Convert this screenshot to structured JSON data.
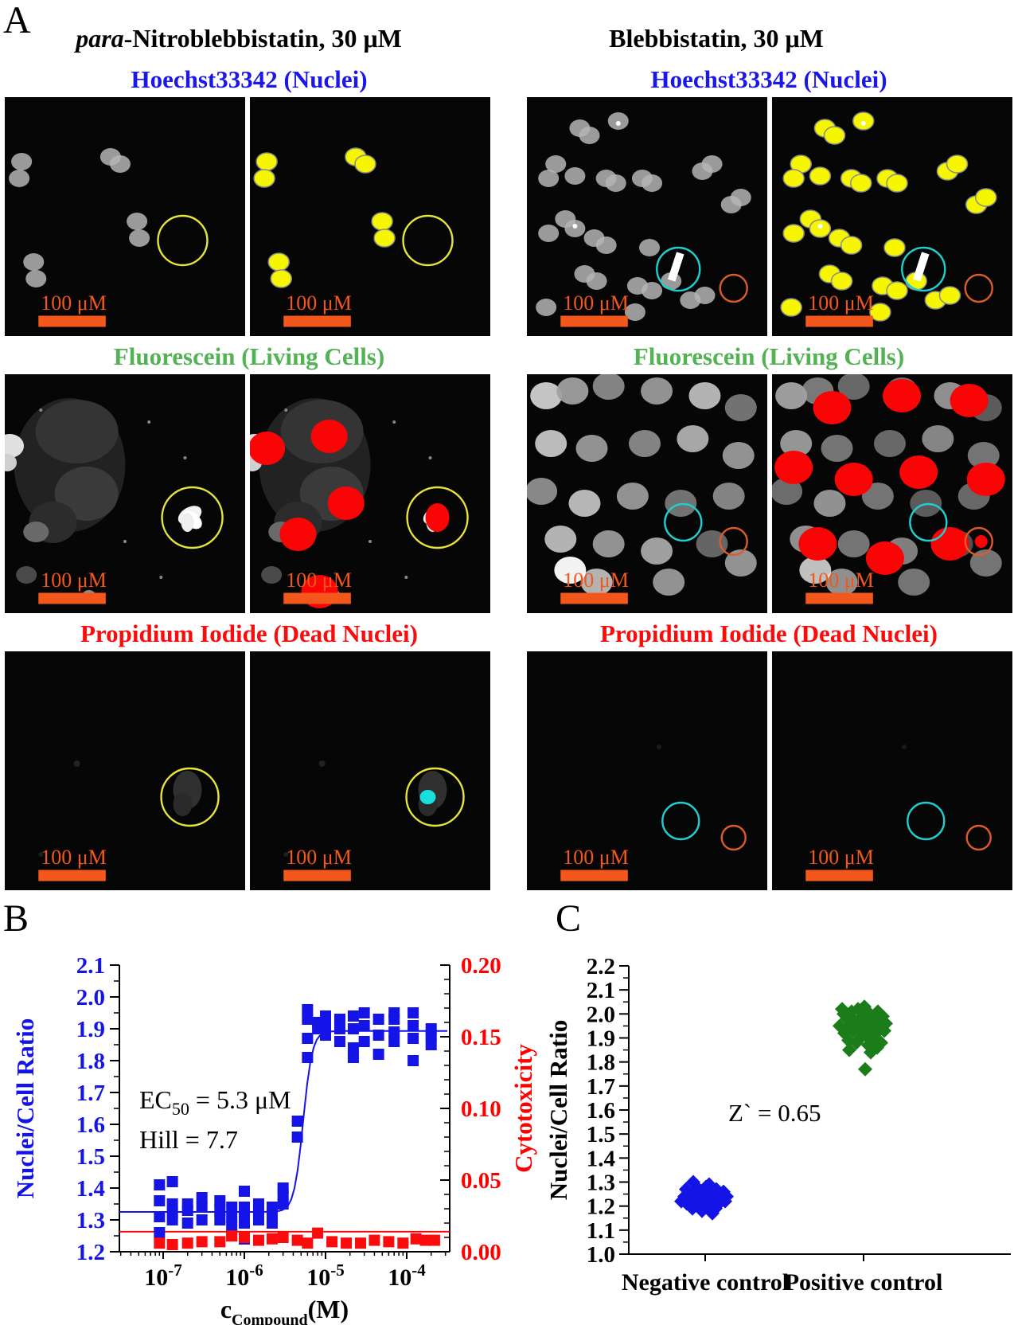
{
  "panel_a": {
    "label": "A",
    "columns": [
      {
        "title_italic": "para",
        "title_rest": "-Nitroblebbistatin, 30 μM"
      },
      {
        "title_italic": "",
        "title_rest": "Blebbistatin, 30 μM"
      }
    ],
    "stain_rows": [
      {
        "header": "Hoechst33342 (Nuclei)",
        "color": "#1b17e8"
      },
      {
        "header": "Fluorescein (Living Cells)",
        "color": "#53b253"
      },
      {
        "header": "Propidium Iodide (Dead Nuclei)",
        "color": "#fb0b0b"
      }
    ],
    "scale_bar_label": "100 μM",
    "scale_bar_color": "#f4571c",
    "annotation_circle_colors": {
      "yellow": "#e8e43c",
      "cyan": "#1ecfcf",
      "orange": "#dd5b28"
    },
    "highlight_colors": {
      "nuclei_mask": "#f6f600",
      "living_mask": "#fa0505",
      "dead_mask": "#19dede"
    }
  },
  "panel_b": {
    "label": "B"
  },
  "panel_c": {
    "label": "C"
  },
  "chart_data": [
    {
      "id": "dose-response",
      "type": "scatter",
      "x_scale": "log",
      "xlabel": {
        "main": "c",
        "sub": "Compound",
        "suffix": "(M)"
      },
      "x_ticks": [
        {
          "base": "10",
          "exp": "-7",
          "value": 1e-07
        },
        {
          "base": "10",
          "exp": "-6",
          "value": 1e-06
        },
        {
          "base": "10",
          "exp": "-5",
          "value": 1e-05
        },
        {
          "base": "10",
          "exp": "-4",
          "value": 0.0001
        }
      ],
      "left_axis": {
        "label": "Nuclei/Cell Ratio",
        "color": "#1414e8",
        "min": 1.2,
        "max": 2.1,
        "tick_labels": [
          "2.1",
          "2.0",
          "1.9",
          "1.8",
          "1.7",
          "1.6",
          "1.5",
          "1.4",
          "1.3",
          "1.2"
        ]
      },
      "right_axis": {
        "label": "Cytotoxicity",
        "color": "#fe0000",
        "min": 0.0,
        "max": 0.2,
        "tick_labels": [
          "0.20",
          "0.15",
          "0.10",
          "0.05",
          "0.00"
        ]
      },
      "annotations": [
        {
          "prefix": "EC",
          "sub": "50",
          "rest": " = 5.3 μM"
        },
        {
          "prefix": "",
          "sub": "",
          "rest": "Hill = 7.7"
        }
      ],
      "fit": {
        "base": 1.325,
        "top": 1.893,
        "ec50": 5.3e-06,
        "hill": 7.7
      },
      "baseline_right_value": 0.014,
      "series": [
        {
          "name": "Nuclei/Cell Ratio",
          "axis": "left",
          "marker": "square",
          "color": "#1414e8",
          "points": [
            [
              9e-08,
              1.41
            ],
            [
              9e-08,
              1.36
            ],
            [
              9e-08,
              1.31
            ],
            [
              9e-08,
              1.26
            ],
            [
              1.3e-07,
              1.42
            ],
            [
              1.3e-07,
              1.35
            ],
            [
              1.3e-07,
              1.32
            ],
            [
              1.3e-07,
              1.3
            ],
            [
              2e-07,
              1.35
            ],
            [
              2e-07,
              1.33
            ],
            [
              2e-07,
              1.29
            ],
            [
              3e-07,
              1.37
            ],
            [
              3e-07,
              1.34
            ],
            [
              3e-07,
              1.3
            ],
            [
              5e-07,
              1.36
            ],
            [
              5e-07,
              1.33
            ],
            [
              5e-07,
              1.3
            ],
            [
              7e-07,
              1.34
            ],
            [
              7e-07,
              1.31
            ],
            [
              7e-07,
              1.28
            ],
            [
              7e-07,
              1.25
            ],
            [
              1e-06,
              1.39
            ],
            [
              1e-06,
              1.34
            ],
            [
              1e-06,
              1.32
            ],
            [
              1e-06,
              1.29
            ],
            [
              1e-06,
              1.24
            ],
            [
              1.5e-06,
              1.35
            ],
            [
              1.5e-06,
              1.33
            ],
            [
              1.5e-06,
              1.3
            ],
            [
              2.2e-06,
              1.34
            ],
            [
              2.2e-06,
              1.32
            ],
            [
              2.2e-06,
              1.29
            ],
            [
              3e-06,
              1.4
            ],
            [
              3e-06,
              1.38
            ],
            [
              3e-06,
              1.35
            ],
            [
              4.5e-06,
              1.61
            ],
            [
              4.5e-06,
              1.56
            ],
            [
              6e-06,
              1.96
            ],
            [
              6e-06,
              1.93
            ],
            [
              6e-06,
              1.87
            ],
            [
              6e-06,
              1.81
            ],
            [
              8e-06,
              1.92
            ],
            [
              8e-06,
              1.9
            ],
            [
              1e-05,
              1.94
            ],
            [
              1e-05,
              1.91
            ],
            [
              1e-05,
              1.88
            ],
            [
              1.5e-05,
              1.93
            ],
            [
              1.5e-05,
              1.9
            ],
            [
              1.5e-05,
              1.86
            ],
            [
              2.2e-05,
              1.94
            ],
            [
              2.2e-05,
              1.9
            ],
            [
              2.2e-05,
              1.84
            ],
            [
              2.2e-05,
              1.81
            ],
            [
              3e-05,
              1.95
            ],
            [
              3e-05,
              1.91
            ],
            [
              3e-05,
              1.86
            ],
            [
              4.5e-05,
              1.93
            ],
            [
              4.5e-05,
              1.88
            ],
            [
              4.5e-05,
              1.82
            ],
            [
              7e-05,
              1.95
            ],
            [
              7e-05,
              1.93
            ],
            [
              7e-05,
              1.89
            ],
            [
              7e-05,
              1.86
            ],
            [
              0.00012,
              1.95
            ],
            [
              0.00012,
              1.91
            ],
            [
              0.00012,
              1.87
            ],
            [
              0.00012,
              1.8
            ],
            [
              0.0002,
              1.9
            ],
            [
              0.0002,
              1.88
            ],
            [
              0.0002,
              1.85
            ]
          ]
        },
        {
          "name": "Cytotoxicity",
          "axis": "right",
          "marker": "square",
          "color": "#fb0b0b",
          "points": [
            [
              9e-08,
              0.006
            ],
            [
              1.3e-07,
              0.005
            ],
            [
              2e-07,
              0.006
            ],
            [
              3e-07,
              0.007
            ],
            [
              5e-07,
              0.007
            ],
            [
              7e-07,
              0.011
            ],
            [
              1e-06,
              0.01
            ],
            [
              1.5e-06,
              0.008
            ],
            [
              2.2e-06,
              0.009
            ],
            [
              3e-06,
              0.01
            ],
            [
              4.5e-06,
              0.008
            ],
            [
              6e-06,
              0.006
            ],
            [
              8e-06,
              0.013
            ],
            [
              1.2e-05,
              0.007
            ],
            [
              1.8e-05,
              0.006
            ],
            [
              2.7e-05,
              0.006
            ],
            [
              4e-05,
              0.008
            ],
            [
              6e-05,
              0.007
            ],
            [
              9e-05,
              0.006
            ],
            [
              0.00013,
              0.009
            ],
            [
              0.00017,
              0.008
            ],
            [
              0.00022,
              0.008
            ]
          ]
        }
      ]
    },
    {
      "id": "controls",
      "type": "scatter",
      "categories": [
        "Negative control",
        "Positive control"
      ],
      "y_axis": {
        "label": "Nuclei/Cell Ratio",
        "color": "#000000",
        "min": 1.0,
        "max": 2.2,
        "tick_labels": [
          "2.2",
          "2.1",
          "2.0",
          "1.9",
          "1.8",
          "1.7",
          "1.6",
          "1.5",
          "1.4",
          "1.3",
          "1.2",
          "1.1",
          "1.0"
        ]
      },
      "annotation": "Z` = 0.65",
      "series": [
        {
          "name": "Negative control",
          "color": "#1414e6",
          "marker": "diamond",
          "points": [
            [
              -30,
              1.22
            ],
            [
              -26,
              1.24
            ],
            [
              -23,
              1.21
            ],
            [
              -20,
              1.25
            ],
            [
              -18,
              1.22
            ],
            [
              -16,
              1.19
            ],
            [
              -14,
              1.26
            ],
            [
              -12,
              1.23
            ],
            [
              -10,
              1.2
            ],
            [
              -8,
              1.27
            ],
            [
              -7,
              1.24
            ],
            [
              -5,
              1.21
            ],
            [
              -4,
              1.18
            ],
            [
              -2,
              1.25
            ],
            [
              0,
              1.22
            ],
            [
              1,
              1.28
            ],
            [
              3,
              1.24
            ],
            [
              4,
              1.2
            ],
            [
              6,
              1.26
            ],
            [
              7,
              1.23
            ],
            [
              9,
              1.17
            ],
            [
              10,
              1.25
            ],
            [
              12,
              1.22
            ],
            [
              14,
              1.27
            ],
            [
              15,
              1.24
            ],
            [
              17,
              1.21
            ],
            [
              19,
              1.25
            ],
            [
              21,
              1.23
            ],
            [
              23,
              1.26
            ],
            [
              25,
              1.22
            ],
            [
              27,
              1.24
            ],
            [
              -24,
              1.27
            ],
            [
              -15,
              1.3
            ],
            [
              5,
              1.29
            ],
            [
              13,
              1.19
            ]
          ]
        },
        {
          "name": "Positive control",
          "color": "#1a7d1a",
          "marker": "diamond",
          "points": [
            [
              -30,
              1.95
            ],
            [
              -27,
              2.02
            ],
            [
              -24,
              1.92
            ],
            [
              -21,
              1.98
            ],
            [
              -19,
              1.89
            ],
            [
              -17,
              1.95
            ],
            [
              -15,
              2.01
            ],
            [
              -13,
              1.93
            ],
            [
              -11,
              1.97
            ],
            [
              -9,
              1.88
            ],
            [
              -7,
              2.02
            ],
            [
              -6,
              1.94
            ],
            [
              -4,
              1.9
            ],
            [
              -2,
              1.99
            ],
            [
              0,
              1.95
            ],
            [
              1,
              2.03
            ],
            [
              3,
              1.91
            ],
            [
              5,
              1.97
            ],
            [
              6,
              1.87
            ],
            [
              8,
              2.0
            ],
            [
              10,
              1.94
            ],
            [
              12,
              1.9
            ],
            [
              14,
              1.97
            ],
            [
              16,
              1.92
            ],
            [
              18,
              2.01
            ],
            [
              20,
              1.95
            ],
            [
              22,
              1.88
            ],
            [
              24,
              1.99
            ],
            [
              26,
              1.93
            ],
            [
              28,
              1.96
            ],
            [
              -18,
              1.85
            ],
            [
              2,
              1.77
            ],
            [
              9,
              1.84
            ],
            [
              -25,
              2.0
            ],
            [
              17,
              1.86
            ]
          ]
        }
      ]
    }
  ]
}
